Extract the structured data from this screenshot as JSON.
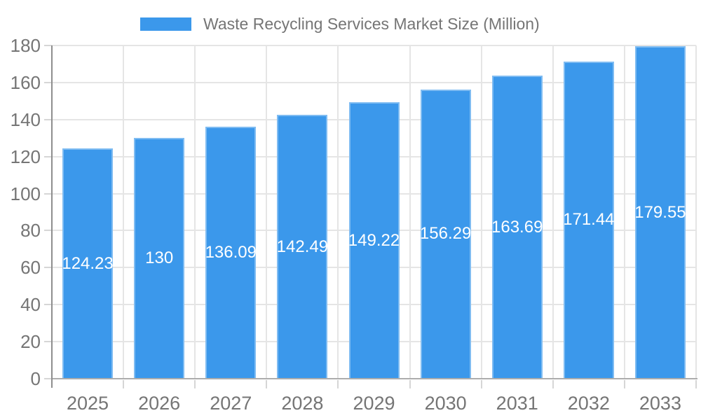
{
  "legend": {
    "label": "Waste Recycling Services Market Size (Million)"
  },
  "chart_data": {
    "type": "bar",
    "title": "Waste Recycling Services Market Size (Million)",
    "categories": [
      "2025",
      "2026",
      "2027",
      "2028",
      "2029",
      "2030",
      "2031",
      "2032",
      "2033"
    ],
    "values": [
      124.23,
      130,
      136.09,
      142.49,
      149.22,
      156.29,
      163.69,
      171.44,
      179.55
    ],
    "value_labels": [
      "124.23",
      "130",
      "136.09",
      "142.49",
      "149.22",
      "156.29",
      "163.69",
      "171.44",
      "179.55"
    ],
    "xlabel": "",
    "ylabel": "",
    "ylim": [
      0,
      180
    ],
    "ytick_step": 20,
    "yticks": [
      0,
      20,
      40,
      60,
      80,
      100,
      120,
      140,
      160,
      180
    ],
    "grid": true,
    "legend_position": "top",
    "value_label_position": "center-inside",
    "colors": {
      "bar_fill": "#3b98eb",
      "bar_label_text": "#ffffff",
      "grid_line": "#e5e5e5",
      "x_axis_line": "#adadad",
      "y_axis_line": "#8e8e8e",
      "tick_line": "#d6d6d6",
      "axis_label_text": "#757575",
      "legend_text": "#757575",
      "background": "#ffffff"
    }
  }
}
